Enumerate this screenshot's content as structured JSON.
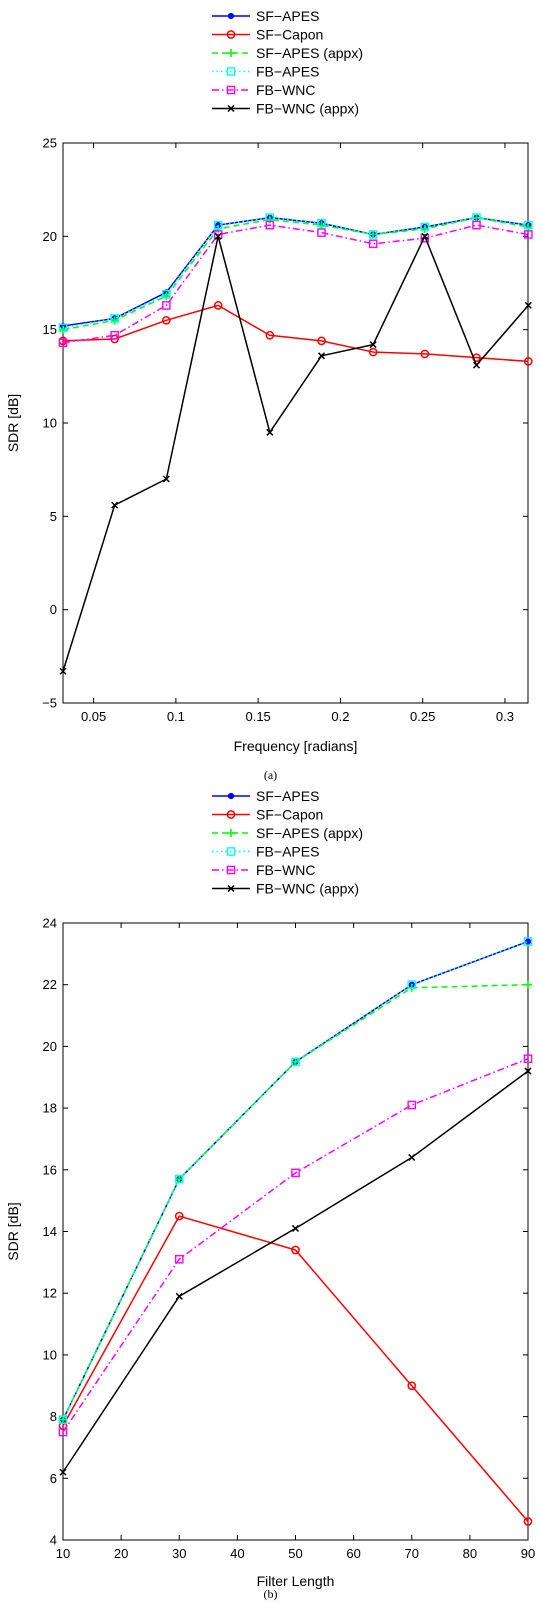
{
  "chart_data": [
    {
      "type": "line",
      "caption": "(a)",
      "xlabel": "Frequency [radians]",
      "ylabel": "SDR [dB]",
      "xlim": [
        0.0314,
        0.314
      ],
      "ylim": [
        -5,
        25
      ],
      "xticks": [
        "0.05",
        "0.1",
        "0.15",
        "0.2",
        "0.25",
        "0.3"
      ],
      "yticks": [
        "-5",
        "0",
        "5",
        "10",
        "15",
        "20",
        "25"
      ],
      "legend_position": "above-plot",
      "x": [
        0.0314,
        0.0628,
        0.0942,
        0.1257,
        0.1571,
        0.1885,
        0.2199,
        0.2513,
        0.2827,
        0.3142
      ],
      "series": [
        {
          "name": "SF−APES",
          "color": "#0000ff",
          "marker": "dot",
          "dash": "solid",
          "values": [
            15.2,
            15.6,
            17.0,
            20.6,
            21.0,
            20.7,
            20.1,
            20.5,
            21.0,
            20.6
          ]
        },
        {
          "name": "SF−Capon",
          "color": "#ff0000",
          "marker": "circle",
          "dash": "solid",
          "values": [
            14.4,
            14.5,
            15.5,
            16.3,
            14.7,
            14.4,
            13.8,
            13.7,
            13.5,
            13.3
          ]
        },
        {
          "name": "SF−APES (appx)",
          "color": "#00ff00",
          "marker": "plus",
          "dash": "dash",
          "values": [
            15.0,
            15.5,
            16.8,
            20.4,
            20.9,
            20.6,
            20.1,
            20.4,
            21.0,
            20.5
          ]
        },
        {
          "name": "FB−APES",
          "color": "#00ffff",
          "marker": "square",
          "dash": "dot",
          "values": [
            15.1,
            15.6,
            16.9,
            20.6,
            21.0,
            20.7,
            20.1,
            20.5,
            21.0,
            20.6
          ]
        },
        {
          "name": "FB−WNC",
          "color": "#ff00ff",
          "marker": "square",
          "dash": "dashdot",
          "values": [
            14.3,
            14.7,
            16.3,
            20.1,
            20.6,
            20.2,
            19.6,
            19.9,
            20.6,
            20.1
          ]
        },
        {
          "name": "FB−WNC (appx)",
          "color": "#000000",
          "marker": "x",
          "dash": "solid",
          "values": [
            -3.3,
            5.6,
            7.0,
            20.0,
            9.5,
            13.6,
            14.2,
            20.0,
            13.1,
            16.3
          ]
        }
      ]
    },
    {
      "type": "line",
      "caption": "(b)",
      "xlabel": "Filter Length",
      "ylabel": "SDR [dB]",
      "xlim": [
        10,
        90
      ],
      "ylim": [
        4,
        24
      ],
      "xticks": [
        "10",
        "20",
        "30",
        "40",
        "50",
        "60",
        "70",
        "80",
        "90"
      ],
      "yticks": [
        "4",
        "6",
        "8",
        "10",
        "12",
        "14",
        "16",
        "18",
        "20",
        "22",
        "24"
      ],
      "legend_position": "above-plot",
      "x": [
        10,
        30,
        50,
        70,
        90
      ],
      "series": [
        {
          "name": "SF−APES",
          "color": "#0000ff",
          "marker": "dot",
          "dash": "solid",
          "values": [
            7.9,
            15.7,
            19.5,
            22.0,
            23.4
          ]
        },
        {
          "name": "SF−Capon",
          "color": "#ff0000",
          "marker": "circle",
          "dash": "solid",
          "values": [
            7.7,
            14.5,
            13.4,
            9.0,
            4.6
          ]
        },
        {
          "name": "SF−APES (appx)",
          "color": "#00ff00",
          "marker": "plus",
          "dash": "dash",
          "values": [
            7.9,
            15.7,
            19.5,
            21.9,
            22.0
          ]
        },
        {
          "name": "FB−APES",
          "color": "#00ffff",
          "marker": "square",
          "dash": "dot",
          "values": [
            7.9,
            15.7,
            19.5,
            22.0,
            23.4
          ]
        },
        {
          "name": "FB−WNC",
          "color": "#ff00ff",
          "marker": "square",
          "dash": "dashdot",
          "values": [
            7.5,
            13.1,
            15.9,
            18.1,
            19.6
          ]
        },
        {
          "name": "FB−WNC (appx)",
          "color": "#000000",
          "marker": "x",
          "dash": "solid",
          "values": [
            6.2,
            11.9,
            14.1,
            16.4,
            19.2
          ]
        }
      ]
    }
  ]
}
